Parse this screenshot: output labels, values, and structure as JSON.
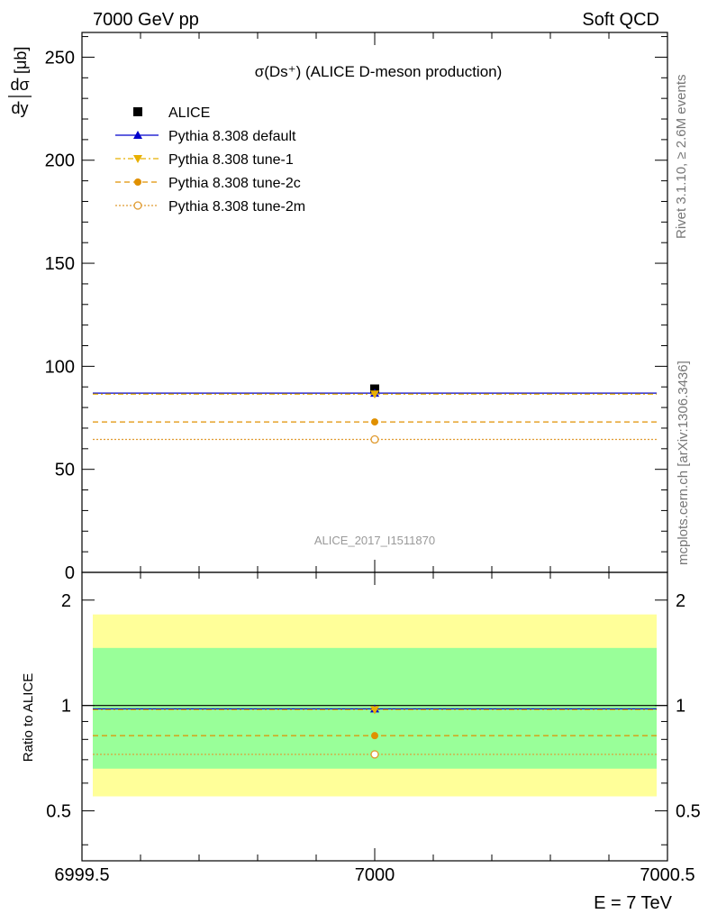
{
  "header": {
    "left": "7000 GeV pp",
    "right": "Soft QCD"
  },
  "side": {
    "rivet": "Rivet 3.1.10, ≥ 2.6M events",
    "mcplots": "mcplots.cern.ch [arXiv:1306.3436]"
  },
  "chart_data": [
    {
      "type": "scatter",
      "title": "σ(Ds⁺) (ALICE D-meson production)",
      "ylabel": "dσ/dy [μb]",
      "analysis_label": "ALICE_2017_I1511870",
      "xlim": [
        6999.5,
        7000.5
      ],
      "ylim": [
        0,
        262
      ],
      "y_ticks": [
        0,
        50,
        100,
        150,
        200,
        250
      ],
      "legend_position": "top-left",
      "series": [
        {
          "name": "ALICE",
          "marker": "square-filled",
          "color": "#000000",
          "line": "none",
          "x": [
            7000
          ],
          "y": [
            89
          ]
        },
        {
          "name": "Pythia 8.308 default",
          "marker": "triangle-up-filled",
          "color": "#0000cc",
          "line": "solid",
          "x": [
            7000
          ],
          "y": [
            87
          ]
        },
        {
          "name": "Pythia 8.308 tune-1",
          "marker": "triangle-down-filled",
          "color": "#e8b000",
          "line": "dash-dot",
          "x": [
            7000
          ],
          "y": [
            86.5
          ]
        },
        {
          "name": "Pythia 8.308 tune-2c",
          "marker": "circle-filled",
          "color": "#e09000",
          "line": "dashed",
          "x": [
            7000
          ],
          "y": [
            73
          ]
        },
        {
          "name": "Pythia 8.308 tune-2m",
          "marker": "circle-open",
          "color": "#e09b30",
          "line": "dotted",
          "x": [
            7000
          ],
          "y": [
            64.5
          ]
        }
      ]
    },
    {
      "type": "scatter",
      "ylabel": "Ratio to ALICE",
      "xlabel": "E = 7 TeV",
      "xlim": [
        6999.5,
        7000.5
      ],
      "x_ticks": [
        6999.5,
        7000,
        7000.5
      ],
      "x_tick_labels": [
        "6999.5",
        "7000",
        "7000.5"
      ],
      "y_scale": "log",
      "ylim": [
        0.36,
        2.4
      ],
      "y_ticks": [
        0.5,
        1,
        2
      ],
      "y_tick_labels": [
        "0.5",
        "1",
        "2"
      ],
      "bands": [
        {
          "color": "#ffff99",
          "low": 0.55,
          "high": 1.82
        },
        {
          "color": "#99ff99",
          "low": 0.66,
          "high": 1.46
        }
      ],
      "series": [
        {
          "name": "Pythia 8.308 default",
          "marker": "triangle-up-filled",
          "color": "#0000cc",
          "line": "solid",
          "x": [
            7000
          ],
          "y": [
            0.978
          ]
        },
        {
          "name": "Pythia 8.308 tune-1",
          "marker": "triangle-down-filled",
          "color": "#e8b000",
          "line": "dash-dot",
          "x": [
            7000
          ],
          "y": [
            0.972
          ]
        },
        {
          "name": "Pythia 8.308 tune-2c",
          "marker": "circle-filled",
          "color": "#e09000",
          "line": "dashed",
          "x": [
            7000
          ],
          "y": [
            0.82
          ]
        },
        {
          "name": "Pythia 8.308 tune-2m",
          "marker": "circle-open",
          "color": "#e09b30",
          "line": "dotted",
          "x": [
            7000
          ],
          "y": [
            0.725
          ]
        }
      ]
    }
  ]
}
